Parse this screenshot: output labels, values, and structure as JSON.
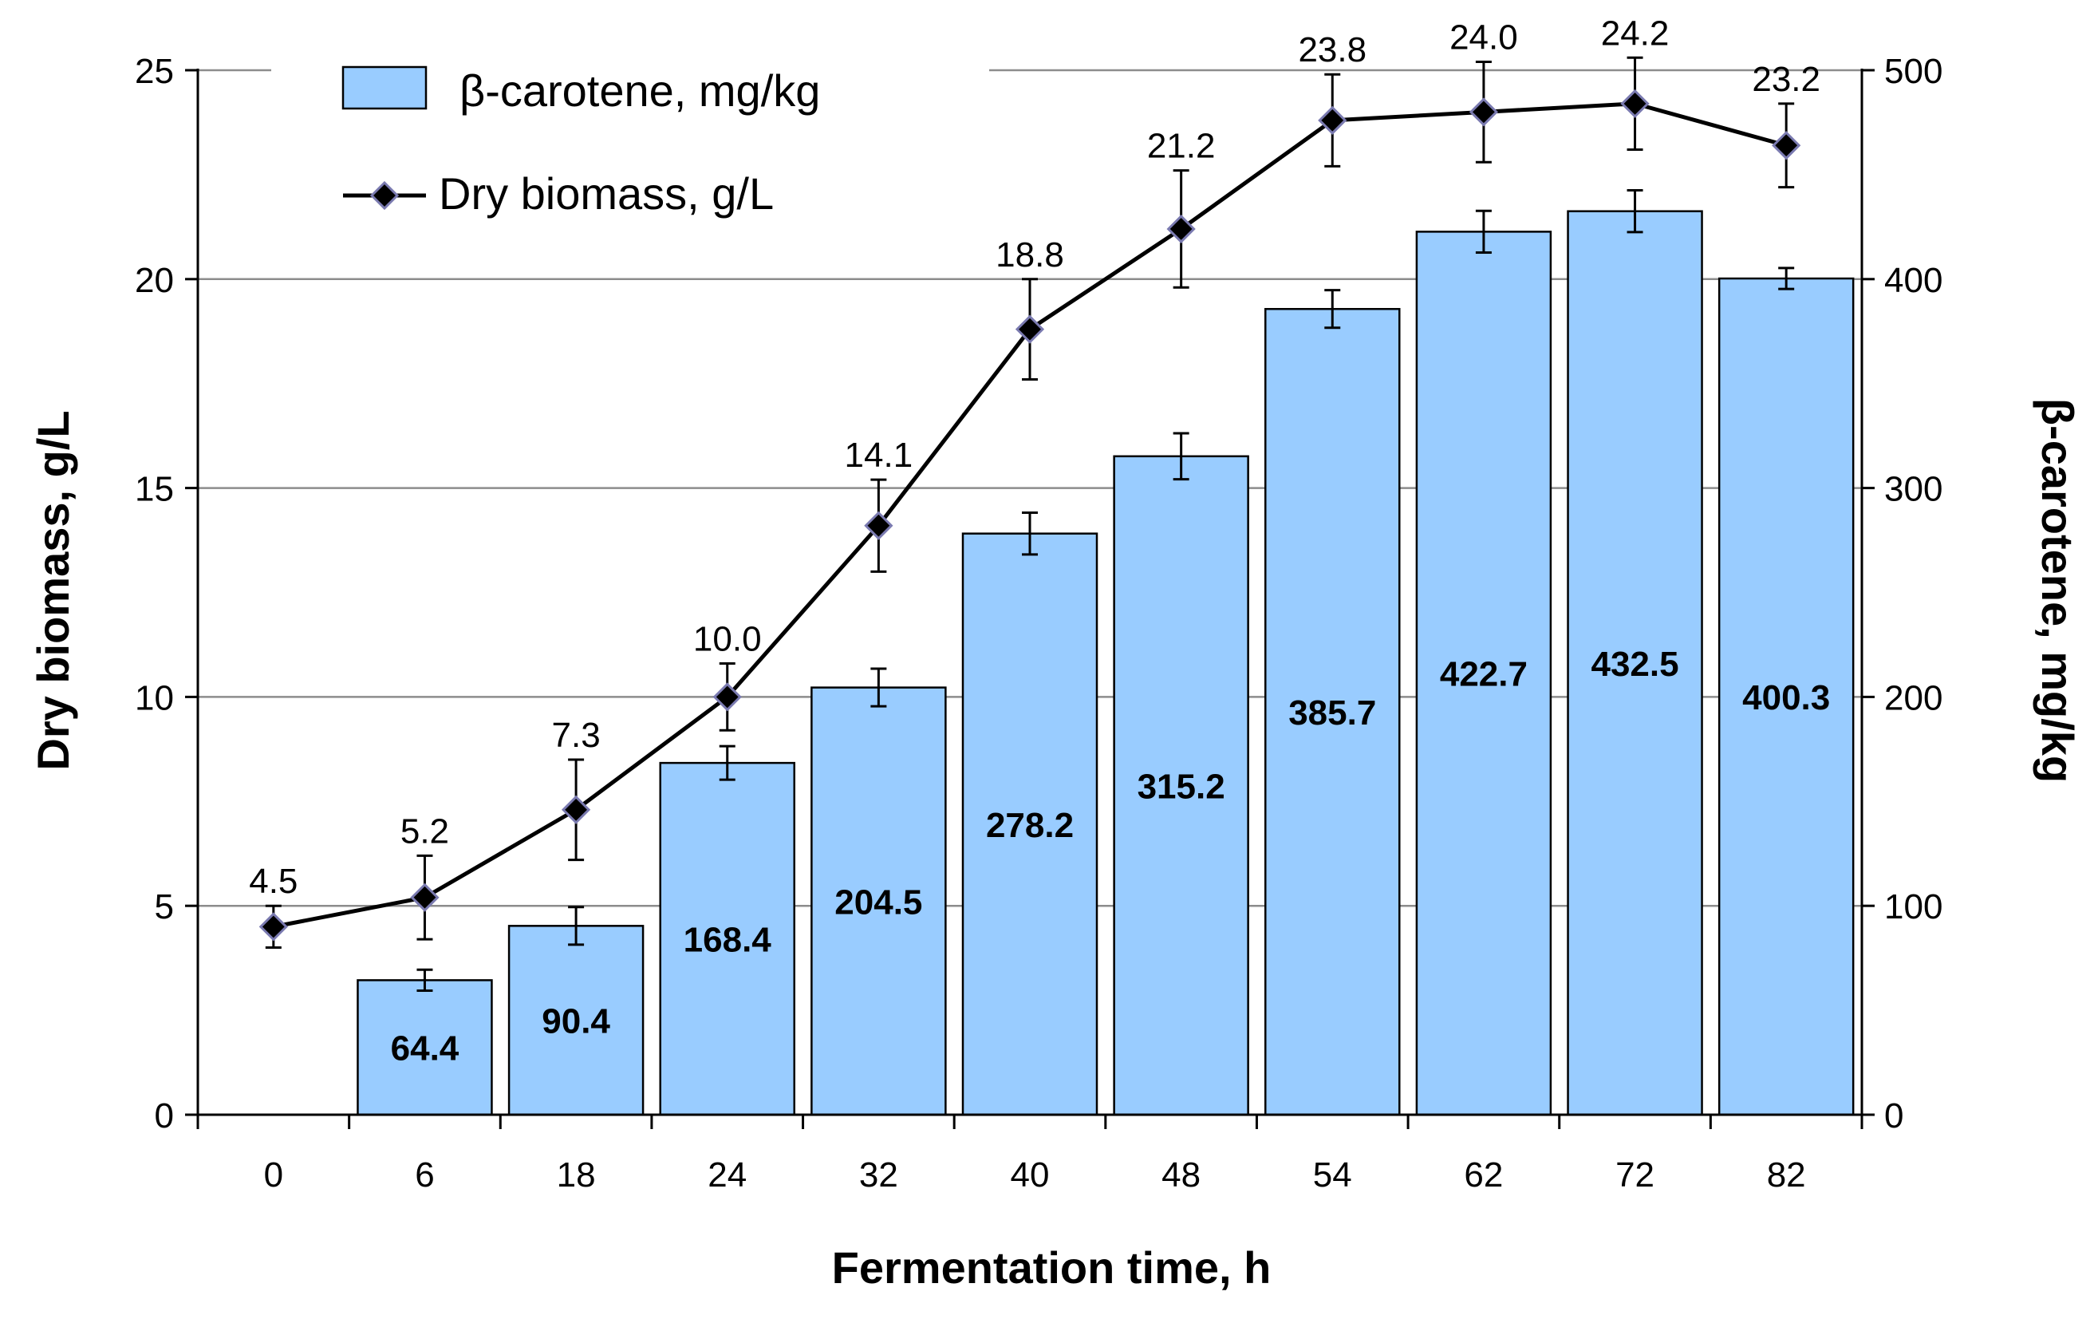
{
  "chart_data": {
    "type": "bar+line",
    "x_title": "Fermentation time, h",
    "y_left_title": "Dry biomass, g/L",
    "y_right_title": "β-carotene, mg/kg",
    "categories": [
      "0",
      "6",
      "18",
      "24",
      "32",
      "40",
      "48",
      "54",
      "62",
      "72",
      "82"
    ],
    "y_left_range": [
      0,
      25
    ],
    "y_left_ticks": [
      "0",
      "5",
      "10",
      "15",
      "20",
      "25"
    ],
    "y_right_range": [
      0,
      500
    ],
    "y_right_ticks": [
      "0",
      "100",
      "200",
      "300",
      "400",
      "500"
    ],
    "gridlines": true,
    "legend_position": "top-left",
    "series": [
      {
        "name": "β-carotene, mg/kg",
        "type": "bar",
        "axis": "right",
        "color": "#99ccff",
        "values": [
          null,
          64.4,
          90.4,
          168.4,
          204.5,
          278.2,
          315.2,
          385.7,
          422.7,
          432.5,
          400.3
        ],
        "labels": [
          "",
          "64.4",
          "90.4",
          "168.4",
          "204.5",
          "278.2",
          "315.2",
          "385.7",
          "422.7",
          "432.5",
          "400.3"
        ],
        "errors": [
          null,
          5,
          9,
          8,
          9,
          10,
          11,
          9,
          10,
          10,
          5
        ]
      },
      {
        "name": "Dry biomass, g/L",
        "type": "line",
        "axis": "left",
        "color": "#000000",
        "values": [
          4.5,
          5.2,
          7.3,
          10.0,
          14.1,
          18.8,
          21.2,
          23.8,
          24.0,
          24.2,
          23.2
        ],
        "labels": [
          "4.5",
          "5.2",
          "7.3",
          "10.0",
          "14.1",
          "18.8",
          "21.2",
          "23.8",
          "24.0",
          "24.2",
          "23.2"
        ],
        "errors": [
          0.5,
          1.0,
          1.2,
          0.8,
          1.1,
          1.2,
          1.4,
          1.1,
          1.2,
          1.1,
          1.0
        ]
      }
    ]
  }
}
